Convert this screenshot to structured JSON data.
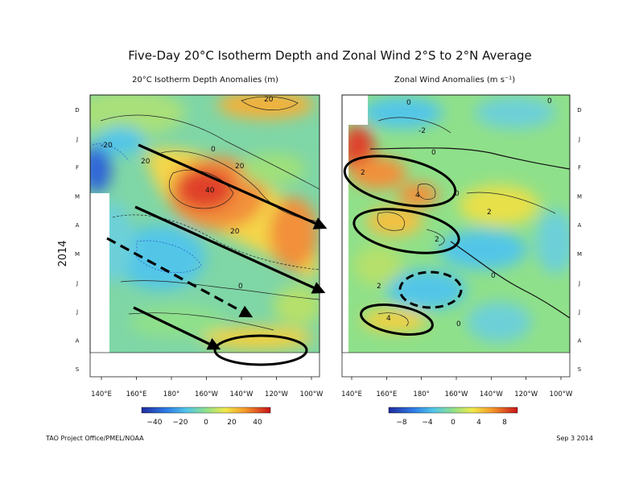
{
  "chart_data": {
    "type": "heatmap",
    "title": "Five-Day 20°C Isotherm Depth and Zonal Wind   2°S to 2°N Average",
    "year_label": "2014",
    "month_labels": [
      "D",
      "J",
      "F",
      "M",
      "A",
      "M",
      "J",
      "J",
      "A",
      "S"
    ],
    "panels": [
      {
        "name": "isotherm",
        "subtitle": "20°C Isotherm Depth Anomalies (m)",
        "x_ticks": [
          "140°E",
          "160°E",
          "180°",
          "160°W",
          "140°W",
          "120°W",
          "100°W"
        ],
        "colorbar": {
          "ticks": [
            "−40",
            "−20",
            "0",
            "20",
            "40"
          ],
          "range": [
            -50,
            50
          ]
        },
        "contour_labels": [
          "20",
          "20",
          "40",
          "-20",
          "0",
          "20",
          "0",
          "20"
        ]
      },
      {
        "name": "wind",
        "subtitle": "Zonal Wind Anomalies (m s⁻¹)",
        "x_ticks": [
          "140°E",
          "160°E",
          "180°",
          "160°W",
          "140°W",
          "120°W",
          "100°W"
        ],
        "colorbar": {
          "ticks": [
            "−8",
            "−4",
            "0",
            "4",
            "8"
          ],
          "range": [
            -10,
            10
          ]
        },
        "contour_labels": [
          "0",
          "-2",
          "0",
          "2",
          "0",
          "2",
          "4",
          "2",
          "4",
          "0",
          "0",
          "2",
          "0"
        ]
      }
    ]
  },
  "footer": {
    "left": "TAO Project Office/PMEL/NOAA",
    "right": "Sep  3 2014"
  },
  "colors": {
    "annotation": "#000000"
  }
}
